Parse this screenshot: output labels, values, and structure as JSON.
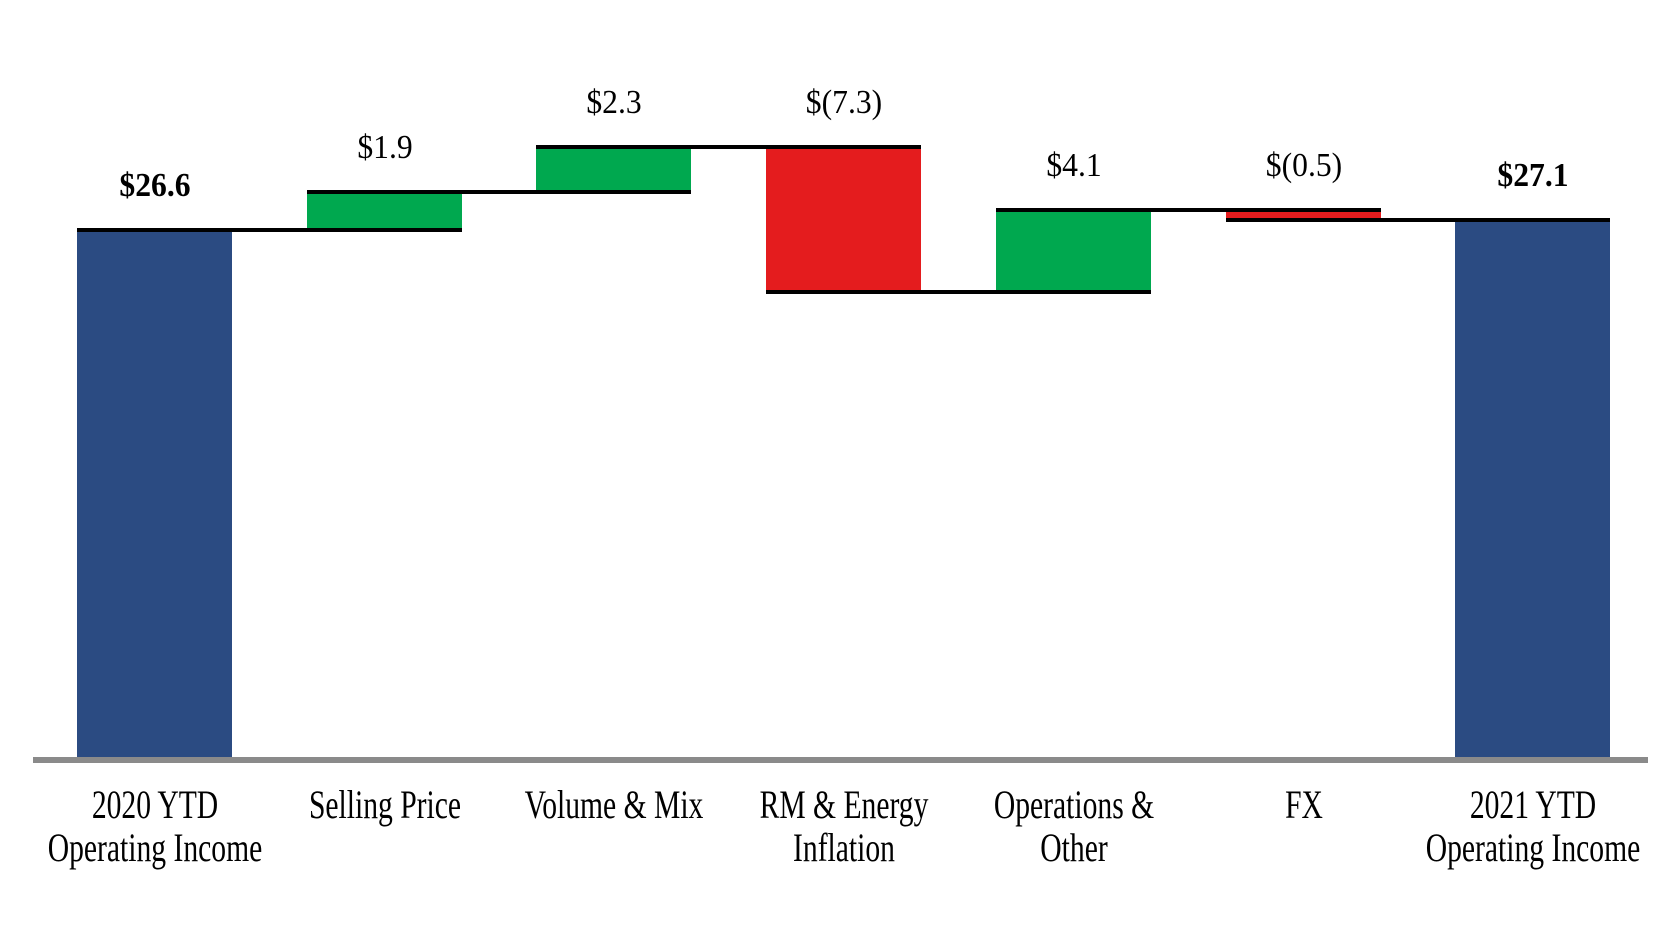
{
  "chart_data": {
    "type": "bar",
    "subtype": "waterfall",
    "title": "",
    "categories": [
      "2020 YTD Operating Income",
      "Selling Price",
      "Volume & Mix",
      "RM & Energy Inflation",
      "Operations & Other",
      "FX",
      "2021 YTD Operating Income"
    ],
    "bars": [
      {
        "category_lines": [
          "2020 YTD",
          "Operating Income"
        ],
        "value": 26.6,
        "label": "$26.6",
        "kind": "total"
      },
      {
        "category_lines": [
          "Selling Price"
        ],
        "value": 1.9,
        "label": "$1.9",
        "kind": "increase"
      },
      {
        "category_lines": [
          "Volume & Mix"
        ],
        "value": 2.3,
        "label": "$2.3",
        "kind": "increase"
      },
      {
        "category_lines": [
          "RM & Energy",
          "Inflation"
        ],
        "value": -7.3,
        "label": "$(7.3)",
        "kind": "decrease"
      },
      {
        "category_lines": [
          "Operations &",
          "Other"
        ],
        "value": 4.1,
        "label": "$4.1",
        "kind": "increase"
      },
      {
        "category_lines": [
          "FX"
        ],
        "value": -0.5,
        "label": "$(0.5)",
        "kind": "decrease"
      },
      {
        "category_lines": [
          "2021 YTD",
          "Operating Income"
        ],
        "value": 27.1,
        "label": "$27.1",
        "kind": "total"
      }
    ],
    "colors": {
      "total": "#2B4B82",
      "increase": "#00A84F",
      "decrease": "#E41C1E",
      "connector": "#000000",
      "baseline_axis": "#8A8A8A"
    },
    "axis": {
      "baseline_value": 0,
      "y_axis_visible": false,
      "gridlines": false,
      "legend": "none"
    }
  }
}
